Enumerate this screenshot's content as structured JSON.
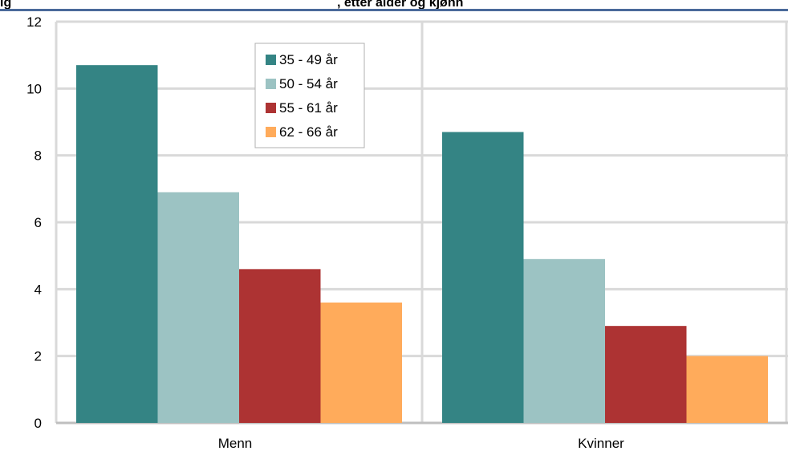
{
  "chart_data": {
    "type": "bar",
    "title_fragment": "ig",
    "title_fragment_2": ", etter alder og kjønn",
    "categories": [
      "Menn",
      "Kvinner"
    ],
    "series": [
      {
        "name": "35 - 49 år",
        "color": "#348484",
        "values": [
          10.7,
          8.7
        ]
      },
      {
        "name": "50 - 54 år",
        "color": "#9cc3c3",
        "values": [
          6.9,
          4.9
        ]
      },
      {
        "name": "55 - 61 år",
        "color": "#ad3333",
        "values": [
          4.6,
          2.9
        ]
      },
      {
        "name": "62 - 66 år",
        "color": "#ffab5b",
        "values": [
          3.6,
          2.0
        ]
      }
    ],
    "ylim": [
      0,
      12
    ],
    "yticks": [
      0,
      2,
      4,
      6,
      8,
      10,
      12
    ],
    "grid": true,
    "legend_position": "top-center-left",
    "colors": {
      "title_rule": "#4a6a9a",
      "grid": "#d9d9d9",
      "axis": "#bfbfbf"
    }
  }
}
